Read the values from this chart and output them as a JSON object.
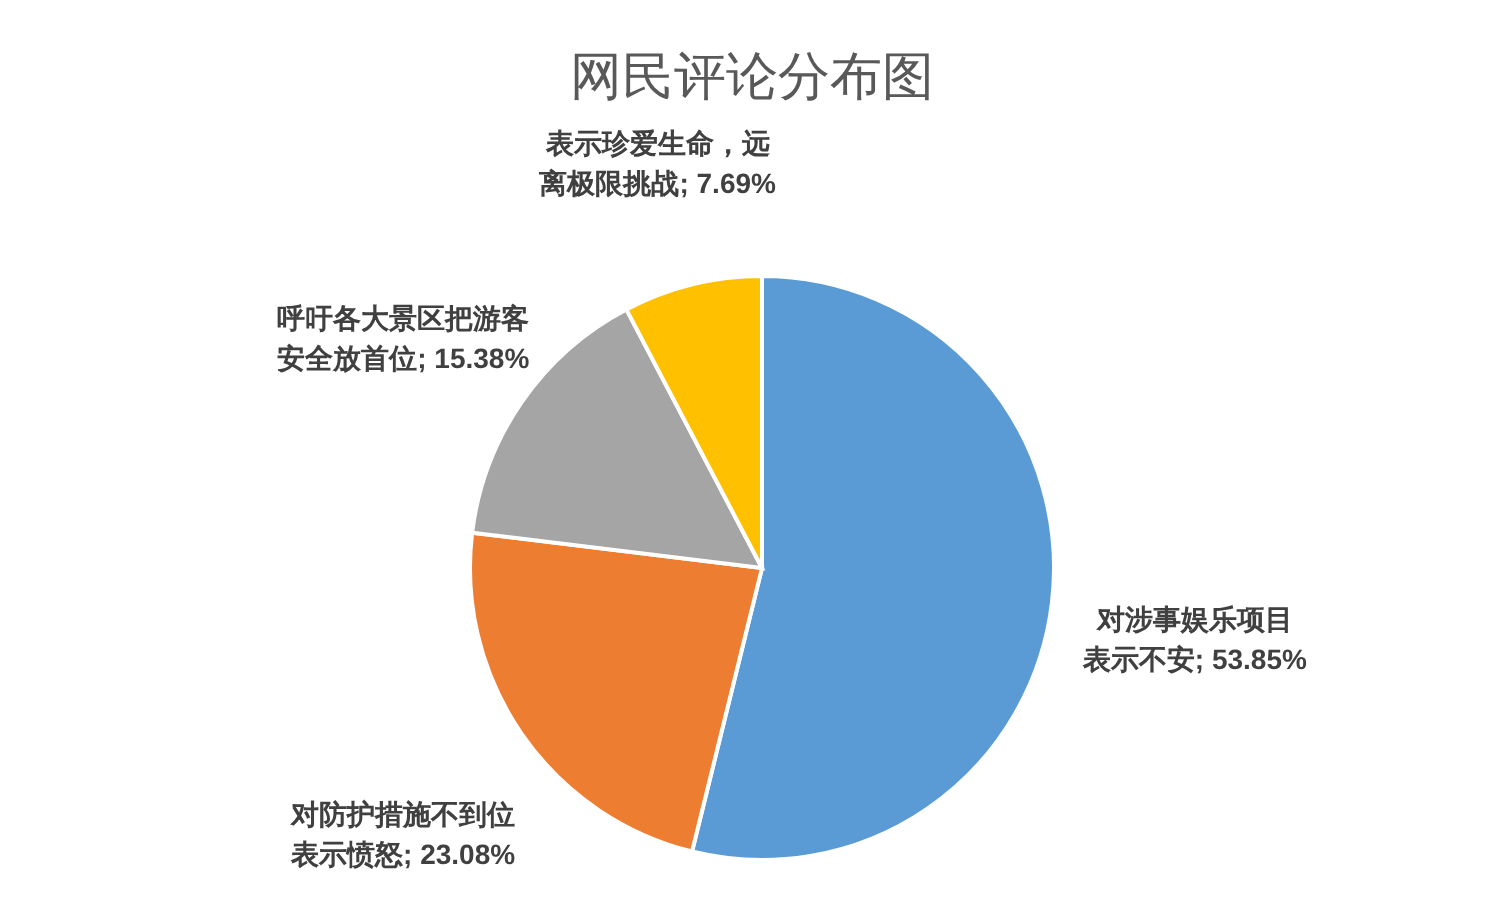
{
  "chart_data": {
    "type": "pie",
    "title": "网民评论分布图",
    "categories": [
      "对涉事娱乐项目表示不安",
      "对防护措施不到位表示愤怒",
      "呼吁各大景区把游客安全放首位",
      "表示珍爱生命，远离极限挑战"
    ],
    "values": [
      53.85,
      23.08,
      15.38,
      7.69
    ],
    "value_labels": [
      "53.85%",
      "23.08%",
      "15.38%",
      "7.69%"
    ],
    "colors": [
      "#5b9bd5",
      "#ed7d31",
      "#a5a5a5",
      "#ffc000"
    ]
  }
}
